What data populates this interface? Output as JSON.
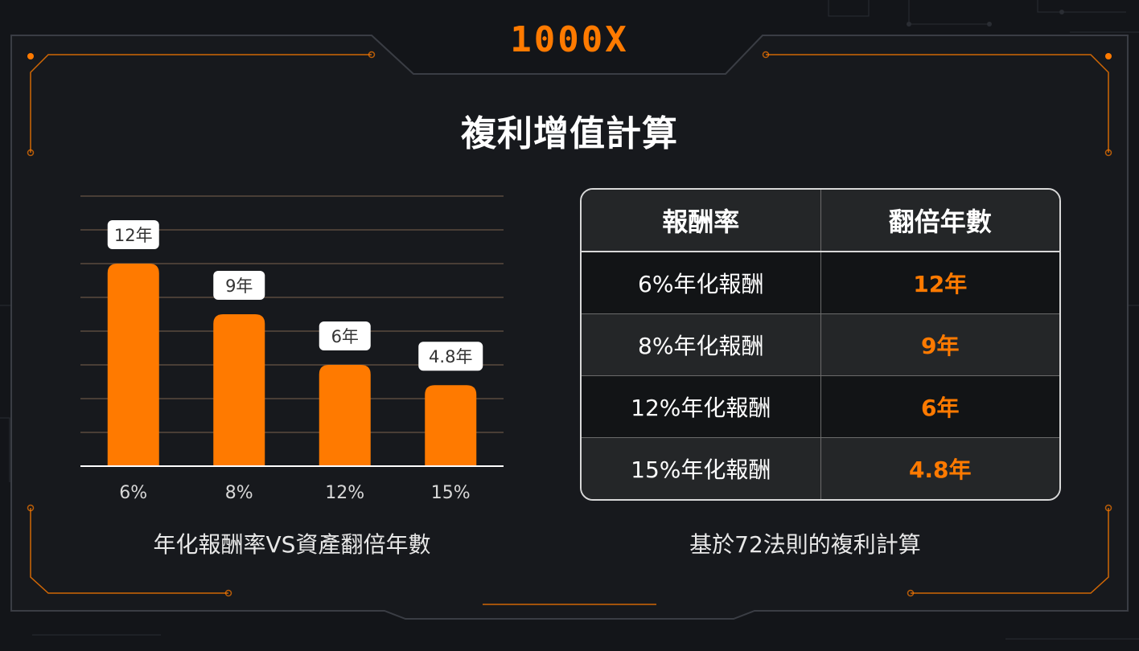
{
  "brand": {
    "logo": "1000X",
    "accent": "#ff7a00"
  },
  "title": "複利增值計算",
  "chart_data": {
    "type": "bar",
    "categories": [
      "6%",
      "8%",
      "12%",
      "15%"
    ],
    "values": [
      12,
      9,
      6,
      4.8
    ],
    "data_labels": [
      "12年",
      "9年",
      "6年",
      "4.8年"
    ],
    "title": "",
    "xlabel": "",
    "ylabel": "",
    "ylim": [
      0,
      16
    ],
    "grid": true,
    "bar_color": "#ff7a00",
    "caption": "年化報酬率VS資產翻倍年數"
  },
  "table": {
    "headers": [
      "報酬率",
      "翻倍年數"
    ],
    "rows": [
      {
        "rate": "6%年化報酬",
        "years": "12年"
      },
      {
        "rate": "8%年化報酬",
        "years": "9年"
      },
      {
        "rate": "12%年化報酬",
        "years": "6年"
      },
      {
        "rate": "15%年化報酬",
        "years": "4.8年"
      }
    ],
    "caption": "基於72法則的複利計算"
  }
}
